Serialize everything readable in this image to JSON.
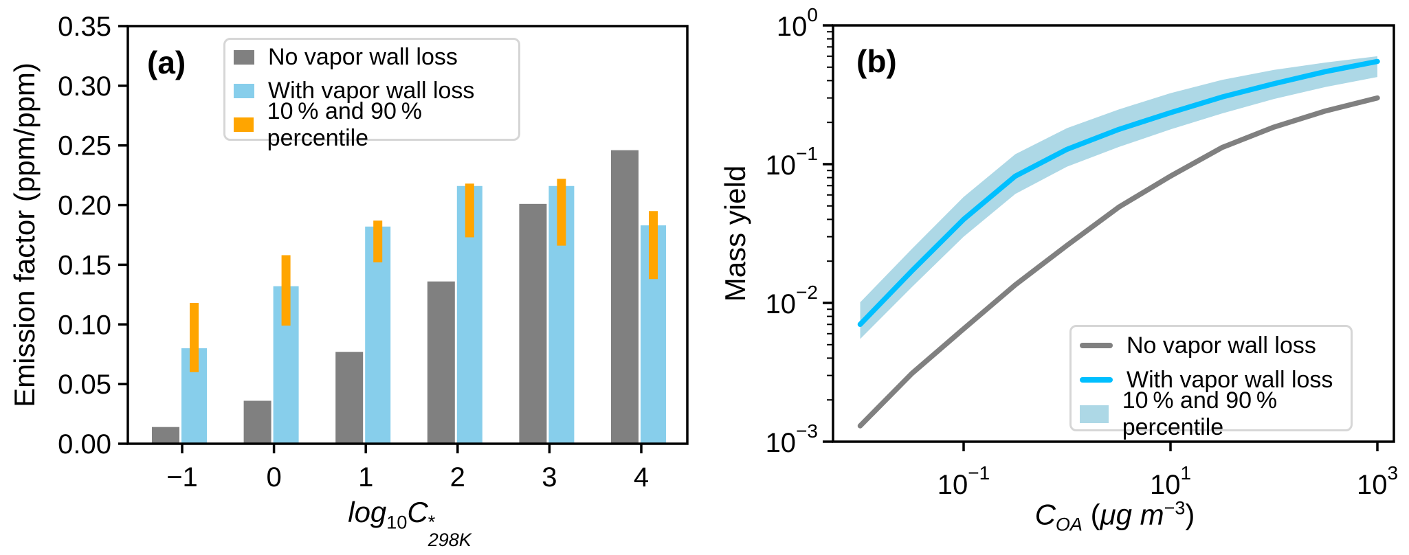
{
  "chart_data": [
    {
      "type": "bar",
      "panel_tag": "(a)",
      "ylabel": "Emission factor (ppm/ppm)",
      "xlabel": "log10C*298K",
      "xlabel_parts": {
        "func": "log",
        "base": "10",
        "variable": "C",
        "sup": "*",
        "sub": "298K"
      },
      "categories": [
        -1,
        0,
        1,
        2,
        3,
        4
      ],
      "x_tick_labels": [
        "−1",
        "0",
        "1",
        "2",
        "3",
        "4"
      ],
      "y_tick_labels": [
        "0.00",
        "0.05",
        "0.10",
        "0.15",
        "0.20",
        "0.25",
        "0.30",
        "0.35"
      ],
      "ylim": [
        0,
        0.35
      ],
      "grid": false,
      "legend_position": "upper left",
      "series": [
        {
          "name": "No vapor wall loss",
          "color": "#808080",
          "values": [
            0.014,
            0.036,
            0.077,
            0.136,
            0.201,
            0.246
          ]
        },
        {
          "name": "With vapor wall loss",
          "color": "#87CEEB",
          "values": [
            0.08,
            0.132,
            0.182,
            0.216,
            0.216,
            0.183
          ]
        }
      ],
      "error_bars": {
        "name": "10 % and 90 % percentile",
        "color": "#FFA500",
        "low": [
          0.06,
          0.099,
          0.152,
          0.173,
          0.166,
          0.138
        ],
        "high": [
          0.118,
          0.158,
          0.187,
          0.218,
          0.222,
          0.195
        ]
      }
    },
    {
      "type": "line",
      "panel_tag": "(b)",
      "ylabel": "Mass yield",
      "xlabel": "C_OA (μg m−3)",
      "xlabel_parts": {
        "variable": "C",
        "sub": "OA",
        "open": " (",
        "unit": "μg m",
        "exp": "−3",
        "close": ")"
      },
      "xscale": "log",
      "yscale": "log",
      "xlim": [
        0.0056,
        1780
      ],
      "ylim": [
        0.001,
        1
      ],
      "x_ticks": [
        {
          "exponent": -1,
          "label": "−1"
        },
        {
          "exponent": 1,
          "label": "1"
        },
        {
          "exponent": 3,
          "label": "3"
        }
      ],
      "y_ticks": [
        {
          "exponent": 0,
          "label": "0"
        },
        {
          "exponent": -1,
          "label": "−1"
        },
        {
          "exponent": -2,
          "label": "−2"
        },
        {
          "exponent": -3,
          "label": "−3"
        }
      ],
      "grid": false,
      "legend_position": "lower right",
      "x": [
        0.01,
        0.0316,
        0.1,
        0.316,
        1,
        3.16,
        10,
        31.6,
        100,
        316,
        1000
      ],
      "series": [
        {
          "name": "No vapor wall loss",
          "color": "#808080",
          "values": [
            0.0013,
            0.0031,
            0.0065,
            0.0135,
            0.026,
            0.049,
            0.082,
            0.132,
            0.185,
            0.242,
            0.3
          ]
        },
        {
          "name": "With vapor wall loss",
          "color": "#00BFFF",
          "values": [
            0.007,
            0.017,
            0.04,
            0.082,
            0.128,
            0.178,
            0.235,
            0.305,
            0.38,
            0.465,
            0.55
          ]
        }
      ],
      "band": {
        "name": "10 % and 90 % percentile",
        "color": "#ADD8E6",
        "low": [
          0.0055,
          0.013,
          0.03,
          0.061,
          0.096,
          0.133,
          0.178,
          0.232,
          0.295,
          0.36,
          0.425
        ],
        "high": [
          0.0101,
          0.0245,
          0.058,
          0.118,
          0.182,
          0.248,
          0.325,
          0.405,
          0.478,
          0.54,
          0.6
        ]
      }
    }
  ]
}
